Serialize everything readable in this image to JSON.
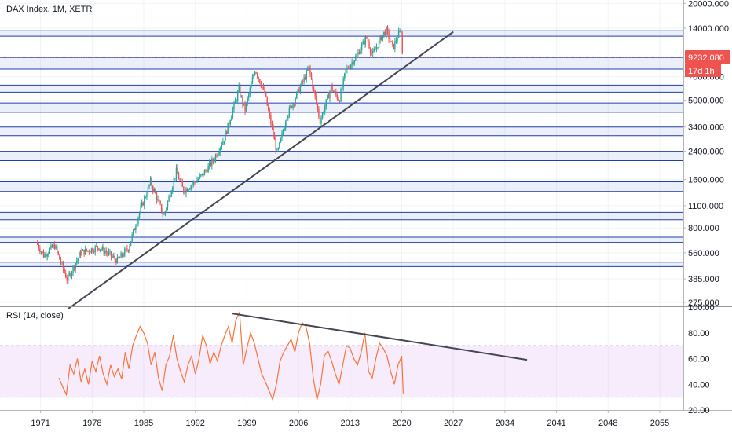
{
  "chart_data": [
    {
      "type": "candlestick",
      "title": "DAX Index, 1M, XETR",
      "y_scale": "log",
      "ylim": [
        260,
        21000
      ],
      "x_ticks": [
        "1971",
        "1978",
        "1985",
        "1992",
        "1999",
        "2006",
        "2013",
        "2020",
        "2027",
        "2034",
        "2041",
        "2048",
        "2055"
      ],
      "x_tick_years": [
        1971,
        1978,
        1985,
        1992,
        1999,
        2006,
        2013,
        2020,
        2027,
        2034,
        2041,
        2048,
        2055
      ],
      "y_ticks": [
        {
          "value": 20000,
          "label": "20000.000"
        },
        {
          "value": 14000,
          "label": "14000.000"
        },
        {
          "value": 7000,
          "label": "7000.000"
        },
        {
          "value": 5000,
          "label": "5000.000"
        },
        {
          "value": 3400,
          "label": "3400.000"
        },
        {
          "value": 2400,
          "label": "2400.000"
        },
        {
          "value": 1600,
          "label": "1600.000"
        },
        {
          "value": 1100,
          "label": "1100.000"
        },
        {
          "value": 800,
          "label": "800.000"
        },
        {
          "value": 560,
          "label": "560.000"
        },
        {
          "value": 385,
          "label": "385.000"
        },
        {
          "value": 275,
          "label": "275.000"
        }
      ],
      "last_price": 9232.08,
      "last_price_label": "9232.080",
      "countdown_label": "17d 1h",
      "series": [
        {
          "x": [
            1970.5,
            1971.5,
            1973.0,
            1974.7,
            1976.5,
            1979.0,
            1981.5,
            1983.0,
            1984.5,
            1986.0,
            1987.8,
            1989.5,
            1990.5,
            1993.0,
            1994.5,
            1996.0,
            1998.0,
            1998.8,
            2000.2,
            2001.5,
            2003.2,
            2004.5,
            2006.0,
            2007.5,
            2009.0,
            2010.5,
            2011.6,
            2012.5,
            2014.0,
            2015.3,
            2016.1,
            2017.5,
            2018.0,
            2018.9,
            2019.5,
            2020.0,
            2020.2
          ],
          "y": [
            650,
            540,
            620,
            380,
            560,
            610,
            500,
            600,
            1000,
            1550,
            950,
            1800,
            1350,
            1700,
            2100,
            2900,
            5800,
            4300,
            7800,
            5500,
            2300,
            4000,
            5600,
            7900,
            3700,
            6000,
            5000,
            7600,
            9500,
            12300,
            9500,
            12800,
            13500,
            10500,
            12500,
            13300,
            9232
          ]
        }
      ],
      "support_bands": [
        [
          12500,
          13500
        ],
        [
          7800,
          9200
        ],
        [
          5600,
          6200
        ],
        [
          4200,
          4800
        ],
        [
          3000,
          3400
        ],
        [
          2100,
          2400
        ],
        [
          1350,
          1550
        ],
        [
          900,
          1000
        ],
        [
          650,
          700
        ],
        [
          460,
          490
        ]
      ],
      "trendline": {
        "start": {
          "date": 1974.7,
          "value": 250
        },
        "end": {
          "date": 2027,
          "value": 13300
        }
      }
    },
    {
      "type": "line",
      "title": "RSI (14, close)",
      "ylim": [
        20,
        100
      ],
      "y_ticks": [
        {
          "value": 100,
          "label": "100.00"
        },
        {
          "value": 80,
          "label": "80.00"
        },
        {
          "value": 60,
          "label": "60.00"
        },
        {
          "value": 40,
          "label": "40.00"
        },
        {
          "value": 20,
          "label": "20.00"
        }
      ],
      "bands": {
        "upper": 70,
        "lower": 30
      },
      "series": [
        {
          "x": [
            1973.5,
            1974.0,
            1974.5,
            1975.0,
            1975.5,
            1976.0,
            1976.5,
            1977.0,
            1977.5,
            1978.0,
            1978.5,
            1979.0,
            1979.5,
            1980.0,
            1980.5,
            1981.0,
            1981.5,
            1982.0,
            1982.5,
            1983.0,
            1983.5,
            1984.0,
            1984.5,
            1985.0,
            1985.5,
            1986.0,
            1986.5,
            1987.0,
            1987.5,
            1988.0,
            1988.5,
            1989.0,
            1989.5,
            1990.0,
            1990.5,
            1991.0,
            1991.5,
            1992.0,
            1992.5,
            1993.0,
            1993.5,
            1994.0,
            1994.5,
            1995.0,
            1995.5,
            1996.0,
            1996.5,
            1997.0,
            1997.5,
            1998.0,
            1998.5,
            1999.0,
            1999.5,
            2000.0,
            2000.5,
            2001.0,
            2001.5,
            2002.0,
            2002.5,
            2003.0,
            2003.5,
            2004.0,
            2004.5,
            2005.0,
            2005.5,
            2006.0,
            2006.5,
            2007.0,
            2007.5,
            2008.0,
            2008.5,
            2009.0,
            2009.5,
            2010.0,
            2010.5,
            2011.0,
            2011.5,
            2012.0,
            2012.5,
            2013.0,
            2013.5,
            2014.0,
            2014.5,
            2015.0,
            2015.5,
            2016.0,
            2016.5,
            2017.0,
            2017.5,
            2018.0,
            2018.5,
            2019.0,
            2019.5,
            2020.0,
            2020.2
          ],
          "y": [
            45,
            38,
            32,
            55,
            48,
            60,
            42,
            52,
            40,
            58,
            50,
            62,
            48,
            40,
            55,
            46,
            52,
            44,
            65,
            52,
            70,
            78,
            85,
            80,
            72,
            55,
            65,
            45,
            35,
            55,
            62,
            78,
            60,
            50,
            42,
            55,
            62,
            48,
            60,
            78,
            70,
            56,
            65,
            58,
            70,
            78,
            85,
            72,
            90,
            96,
            55,
            68,
            80,
            72,
            60,
            48,
            42,
            35,
            28,
            40,
            58,
            65,
            70,
            75,
            65,
            80,
            88,
            85,
            72,
            45,
            28,
            40,
            62,
            66,
            58,
            48,
            40,
            55,
            70,
            68,
            60,
            55,
            65,
            80,
            50,
            45,
            60,
            72,
            68,
            62,
            50,
            40,
            55,
            62,
            33
          ]
        }
      ],
      "trendline": {
        "start": {
          "date": 1997.0,
          "value": 95
        },
        "end": {
          "date": 2037.0,
          "value": 59
        }
      }
    }
  ]
}
